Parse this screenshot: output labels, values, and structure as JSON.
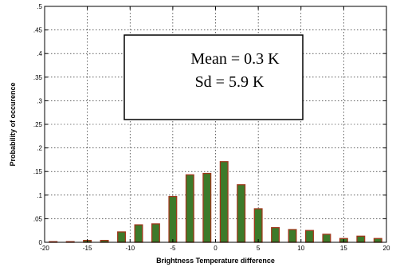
{
  "chart_data": {
    "type": "bar",
    "xlabel": "Brightness Temperature difference",
    "ylabel": "Probability of occurence",
    "xlim": [
      -20,
      20
    ],
    "ylim": [
      0,
      0.5
    ],
    "xticks": [
      -20,
      -15,
      -10,
      -5,
      0,
      5,
      10,
      15,
      20
    ],
    "yticks": [
      0,
      0.05,
      0.1,
      0.15,
      0.2,
      0.25,
      0.3,
      0.35,
      0.4,
      0.45,
      0.5
    ],
    "grid": true,
    "bar_color": "#3d7a2a",
    "bar_edge_color": "#a0381c",
    "x": [
      -19,
      -17,
      -15,
      -13,
      -11,
      -9,
      -7,
      -5,
      -3,
      -1,
      1,
      3,
      5,
      7,
      9,
      11,
      13,
      15,
      17,
      19
    ],
    "values": [
      0.0,
      0.0,
      0.004,
      0.004,
      0.022,
      0.037,
      0.039,
      0.097,
      0.143,
      0.146,
      0.171,
      0.122,
      0.071,
      0.031,
      0.027,
      0.025,
      0.017,
      0.008,
      0.013,
      0.008
    ],
    "annotations": [
      "Mean = 0.3 K",
      "Sd = 5.9 K"
    ]
  }
}
